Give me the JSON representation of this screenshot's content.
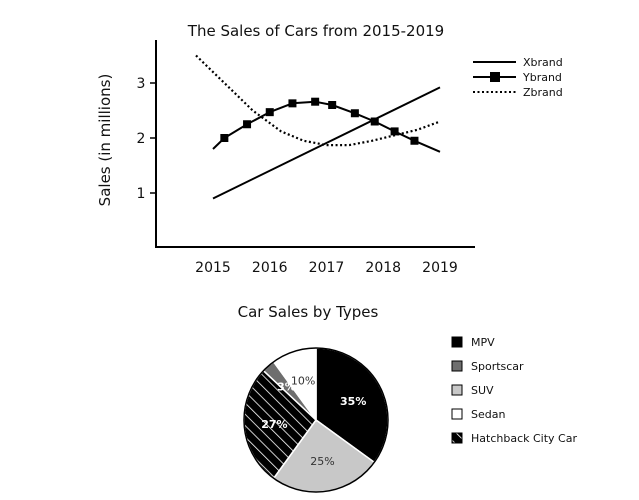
{
  "chart_data": [
    {
      "type": "line",
      "title": "The Sales of Cars from 2015-2019",
      "xlabel": "",
      "ylabel": "Sales (in millions)",
      "x_ticks": [
        "2015",
        "2016",
        "2017",
        "2018",
        "2019"
      ],
      "y_ticks": [
        "1",
        "2",
        "3"
      ],
      "xlim": [
        2014.2,
        2019.6
      ],
      "ylim": [
        0,
        3.8
      ],
      "grid": false,
      "legend_position": "top-right",
      "series": [
        {
          "name": "Xbrand",
          "style": "solid",
          "points": [
            [
              2015,
              0.9
            ],
            [
              2019,
              2.92
            ]
          ]
        },
        {
          "name": "Ybrand",
          "style": "solid-square-markers",
          "points": [
            [
              2015,
              1.8
            ],
            [
              2015.2,
              2.0
            ],
            [
              2015.6,
              2.25
            ],
            [
              2016,
              2.47
            ],
            [
              2016.4,
              2.63
            ],
            [
              2016.8,
              2.66
            ],
            [
              2017.1,
              2.6
            ],
            [
              2017.5,
              2.45
            ],
            [
              2017.85,
              2.3
            ],
            [
              2018.2,
              2.12
            ],
            [
              2018.55,
              1.95
            ],
            [
              2019,
              1.75
            ]
          ]
        },
        {
          "name": "Zbrand",
          "style": "dotted",
          "points": [
            [
              2014.7,
              3.5
            ],
            [
              2015.2,
              3.0
            ],
            [
              2015.7,
              2.5
            ],
            [
              2016.2,
              2.12
            ],
            [
              2016.6,
              1.95
            ],
            [
              2017,
              1.87
            ],
            [
              2017.4,
              1.87
            ],
            [
              2017.8,
              1.95
            ],
            [
              2018.2,
              2.05
            ],
            [
              2018.6,
              2.15
            ],
            [
              2019,
              2.3
            ]
          ]
        }
      ]
    },
    {
      "type": "pie",
      "title": "Car Sales by Types",
      "legend_position": "right",
      "slices": [
        {
          "name": "MPV",
          "value": 35,
          "label": "35%",
          "color": "#000000",
          "pattern": "solid",
          "label_color": "#ffffff"
        },
        {
          "name": "SUV",
          "value": 25,
          "label": "25%",
          "color": "#c8c8c8",
          "pattern": "solid",
          "label_color": "#333333"
        },
        {
          "name": "Hatchback City Car",
          "value": 27,
          "label": "27%",
          "color": "#000000",
          "pattern": "hatch",
          "label_color": "#ffffff"
        },
        {
          "name": "Sportscar",
          "value": 3,
          "label": "3%",
          "color": "#6e6e6e",
          "pattern": "solid",
          "label_color": "#ffffff"
        },
        {
          "name": "Sedan",
          "value": 10,
          "label": "10%",
          "color": "#ffffff",
          "pattern": "solid",
          "label_color": "#333333"
        }
      ],
      "legend_order": [
        "MPV",
        "Sportscar",
        "SUV",
        "Sedan",
        "Hatchback City Car"
      ]
    }
  ]
}
